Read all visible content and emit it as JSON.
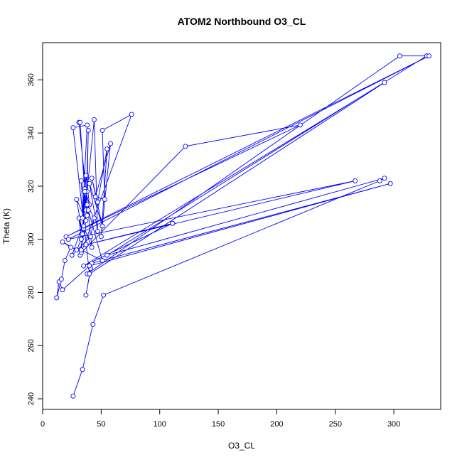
{
  "chart_data": {
    "type": "scatter",
    "title": "ATOM2 Northbound O3_CL",
    "xlabel": "O3_CL",
    "ylabel": "Theta (K)",
    "xlim": [
      0,
      340
    ],
    "ylim": [
      236,
      374
    ],
    "x_ticks": [
      0,
      50,
      100,
      150,
      200,
      250,
      300
    ],
    "y_ticks": [
      240,
      260,
      280,
      300,
      320,
      340,
      360
    ],
    "connected": true,
    "marker": "open-circle",
    "grid": false,
    "series": [
      {
        "color": "#0000ff",
        "points": [
          {
            "x": 26,
            "y": 241
          },
          {
            "x": 34,
            "y": 251
          },
          {
            "x": 43,
            "y": 268
          },
          {
            "x": 52,
            "y": 279
          },
          {
            "x": 288,
            "y": 322
          },
          {
            "x": 292,
            "y": 323
          },
          {
            "x": 55,
            "y": 294
          },
          {
            "x": 328,
            "y": 369
          },
          {
            "x": 305,
            "y": 369
          },
          {
            "x": 38,
            "y": 287
          },
          {
            "x": 41,
            "y": 289
          },
          {
            "x": 37,
            "y": 279
          },
          {
            "x": 42,
            "y": 291
          },
          {
            "x": 297,
            "y": 321
          },
          {
            "x": 40,
            "y": 290
          },
          {
            "x": 17,
            "y": 281
          },
          {
            "x": 14,
            "y": 284
          },
          {
            "x": 12,
            "y": 278
          },
          {
            "x": 16,
            "y": 285
          },
          {
            "x": 19,
            "y": 292
          },
          {
            "x": 24,
            "y": 297
          },
          {
            "x": 17,
            "y": 299
          },
          {
            "x": 29,
            "y": 296
          },
          {
            "x": 33,
            "y": 300
          },
          {
            "x": 31,
            "y": 308
          },
          {
            "x": 34,
            "y": 302
          },
          {
            "x": 29,
            "y": 315
          },
          {
            "x": 37,
            "y": 307
          },
          {
            "x": 32,
            "y": 294
          },
          {
            "x": 35,
            "y": 304
          },
          {
            "x": 33,
            "y": 322
          },
          {
            "x": 38,
            "y": 309
          },
          {
            "x": 36,
            "y": 319
          },
          {
            "x": 40,
            "y": 313
          },
          {
            "x": 37,
            "y": 324
          },
          {
            "x": 35,
            "y": 305
          },
          {
            "x": 42,
            "y": 297
          },
          {
            "x": 31,
            "y": 344
          },
          {
            "x": 32,
            "y": 344
          },
          {
            "x": 37,
            "y": 311
          },
          {
            "x": 39,
            "y": 341
          },
          {
            "x": 38,
            "y": 318
          },
          {
            "x": 44,
            "y": 345
          },
          {
            "x": 47,
            "y": 303
          },
          {
            "x": 40,
            "y": 321
          },
          {
            "x": 51,
            "y": 305
          },
          {
            "x": 42,
            "y": 323
          },
          {
            "x": 47,
            "y": 314
          },
          {
            "x": 55,
            "y": 334
          },
          {
            "x": 50,
            "y": 301
          },
          {
            "x": 58,
            "y": 336
          },
          {
            "x": 45,
            "y": 316
          },
          {
            "x": 53,
            "y": 315
          },
          {
            "x": 51,
            "y": 341
          },
          {
            "x": 76,
            "y": 347
          },
          {
            "x": 33,
            "y": 295
          },
          {
            "x": 122,
            "y": 335
          },
          {
            "x": 220,
            "y": 343
          },
          {
            "x": 20,
            "y": 301
          },
          {
            "x": 330,
            "y": 369
          },
          {
            "x": 22,
            "y": 300
          },
          {
            "x": 267,
            "y": 322
          },
          {
            "x": 37,
            "y": 298
          },
          {
            "x": 111,
            "y": 306
          },
          {
            "x": 35,
            "y": 290
          },
          {
            "x": 292,
            "y": 359
          },
          {
            "x": 40,
            "y": 287
          },
          {
            "x": 26,
            "y": 342
          },
          {
            "x": 38,
            "y": 343
          },
          {
            "x": 34,
            "y": 308
          },
          {
            "x": 36,
            "y": 318
          },
          {
            "x": 33,
            "y": 296
          },
          {
            "x": 51,
            "y": 292
          },
          {
            "x": 39,
            "y": 311
          },
          {
            "x": 25,
            "y": 294
          },
          {
            "x": 41,
            "y": 301
          },
          {
            "x": 44,
            "y": 308
          },
          {
            "x": 38,
            "y": 313
          }
        ]
      }
    ]
  }
}
